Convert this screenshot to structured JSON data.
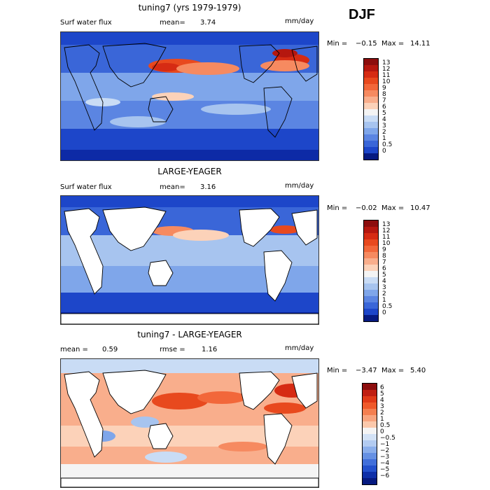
{
  "season": "DJF",
  "panels": [
    {
      "title": "tuning7 (yrs 1979-1979)",
      "left_label": "Surf water flux",
      "mean_label": "mean=",
      "mean_value": "3.74",
      "units": "mm/day",
      "min_label": "Min =",
      "min_value": "−0.15",
      "max_label": "Max =",
      "max_value": "14.11",
      "colorbar_labels": [
        "13",
        "12",
        "11",
        "10",
        "9",
        "8",
        "7",
        "6",
        "5",
        "4",
        "3",
        "2",
        "1",
        "0.5",
        "0"
      ],
      "colors": [
        "#8c0d0d",
        "#b5170f",
        "#d62b13",
        "#e8491e",
        "#f2673a",
        "#f68a60",
        "#f9ae8c",
        "#fcd2b9",
        "#f4f4f4",
        "#c9dcf5",
        "#a7c4ef",
        "#7fa6ea",
        "#5b85e2",
        "#3a66d8",
        "#1d46c9",
        "#0d2aa6",
        "#061a80"
      ],
      "land_fill": false
    },
    {
      "title": "LARGE-YEAGER",
      "left_label": "Surf water flux",
      "mean_label": "mean=",
      "mean_value": "3.16",
      "units": "mm/day",
      "min_label": "Min =",
      "min_value": "−0.02",
      "max_label": "Max =",
      "max_value": "10.47",
      "colorbar_labels": [
        "13",
        "12",
        "11",
        "10",
        "9",
        "8",
        "7",
        "6",
        "5",
        "4",
        "3",
        "2",
        "1",
        "0.5",
        "0"
      ],
      "land_fill": true
    },
    {
      "title": "tuning7 - LARGE-YEAGER",
      "left_label": "mean =",
      "mean_label": "",
      "mean_value": "0.59",
      "rmse_label": "rmse =",
      "rmse_value": "1.16",
      "units": "mm/day",
      "min_label": "Min =",
      "min_value": "−3.47",
      "max_label": "Max =",
      "max_value": "5.40",
      "colorbar_labels": [
        "6",
        "5",
        "4",
        "3",
        "2",
        "1",
        "0.5",
        "0",
        "−0.5",
        "−1",
        "−2",
        "−3",
        "−4",
        "−5",
        "−6"
      ],
      "land_fill": true
    }
  ]
}
